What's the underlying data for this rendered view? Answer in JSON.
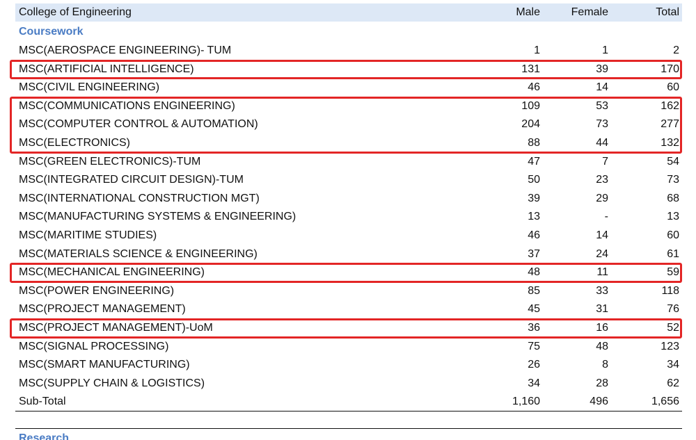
{
  "table": {
    "header": [
      "College of Engineering",
      "Male",
      "Female",
      "Total"
    ],
    "sections": [
      {
        "title": "Coursework",
        "rows": [
          [
            "MSC(AEROSPACE ENGINEERING)- TUM",
            "1",
            "1",
            "2"
          ],
          [
            "MSC(ARTIFICIAL INTELLIGENCE)",
            "131",
            "39",
            "170"
          ],
          [
            "MSC(CIVIL ENGINEERING)",
            "46",
            "14",
            "60"
          ],
          [
            "MSC(COMMUNICATIONS ENGINEERING)",
            "109",
            "53",
            "162"
          ],
          [
            "MSC(COMPUTER CONTROL & AUTOMATION)",
            "204",
            "73",
            "277"
          ],
          [
            "MSC(ELECTRONICS)",
            "88",
            "44",
            "132"
          ],
          [
            "MSC(GREEN ELECTRONICS)-TUM",
            "47",
            "7",
            "54"
          ],
          [
            "MSC(INTEGRATED CIRCUIT DESIGN)-TUM",
            "50",
            "23",
            "73"
          ],
          [
            "MSC(INTERNATIONAL CONSTRUCTION MGT)",
            "39",
            "29",
            "68"
          ],
          [
            "MSC(MANUFACTURING SYSTEMS & ENGINEERING)",
            "13",
            "-",
            "13"
          ],
          [
            "MSC(MARITIME STUDIES)",
            "46",
            "14",
            "60"
          ],
          [
            "MSC(MATERIALS SCIENCE & ENGINEERING)",
            "37",
            "24",
            "61"
          ],
          [
            "MSC(MECHANICAL ENGINEERING)",
            "48",
            "11",
            "59"
          ],
          [
            "MSC(POWER ENGINEERING)",
            "85",
            "33",
            "118"
          ],
          [
            "MSC(PROJECT MANAGEMENT)",
            "45",
            "31",
            "76"
          ],
          [
            "MSC(PROJECT MANAGEMENT)-UoM",
            "36",
            "16",
            "52"
          ],
          [
            "MSC(SIGNAL PROCESSING)",
            "75",
            "48",
            "123"
          ],
          [
            "MSC(SMART MANUFACTURING)",
            "26",
            "8",
            "34"
          ],
          [
            "MSC(SUPPLY CHAIN & LOGISTICS)",
            "34",
            "28",
            "62"
          ]
        ],
        "subtotal": [
          "Sub-Total",
          "1,160",
          "496",
          "1,656"
        ]
      },
      {
        "title": "Research"
      }
    ]
  }
}
